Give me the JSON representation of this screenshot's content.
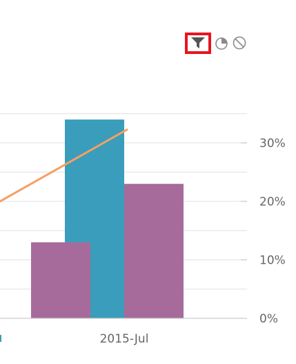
{
  "toolbar": {
    "tools": [
      {
        "icon": "filter-icon",
        "selected": true
      },
      {
        "icon": "pie-chart-icon",
        "selected": false
      },
      {
        "icon": "no-symbol-icon",
        "selected": false
      }
    ],
    "highlight_color": "#e8141d"
  },
  "chart_data": {
    "type": "bar",
    "categories": [
      "",
      "2015-Jul"
    ],
    "series": [
      {
        "kind": "bar",
        "color": "#3a9dbb",
        "values": [
          null,
          34
        ]
      },
      {
        "kind": "bar",
        "color": "#a66b9b",
        "values": [
          13,
          23
        ]
      },
      {
        "kind": "line",
        "color": "#f4a064",
        "values": [
          23,
          32
        ]
      }
    ],
    "y_axis": {
      "position": "right",
      "min": 0,
      "max": 35,
      "ticks": [
        "0%",
        "10%",
        "20%",
        "30%"
      ],
      "tick_values": [
        0,
        10,
        20,
        30
      ]
    },
    "grid": true,
    "legend": "none",
    "partial_category_label_color": "#3a9dbb"
  }
}
